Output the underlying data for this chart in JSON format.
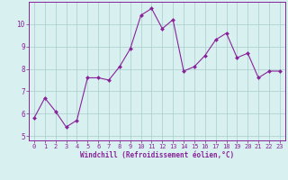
{
  "x": [
    0,
    1,
    2,
    3,
    4,
    5,
    6,
    7,
    8,
    9,
    10,
    11,
    12,
    13,
    14,
    15,
    16,
    17,
    18,
    19,
    20,
    21,
    22,
    23
  ],
  "y": [
    5.8,
    6.7,
    6.1,
    5.4,
    5.7,
    7.6,
    7.6,
    7.5,
    8.1,
    8.9,
    10.4,
    10.7,
    9.8,
    10.2,
    7.9,
    8.1,
    8.6,
    9.3,
    9.6,
    8.5,
    8.7,
    7.6,
    7.9,
    7.9
  ],
  "line_color": "#882299",
  "marker": "D",
  "marker_size": 2.0,
  "bg_color": "#d8f0f0",
  "grid_color": "#aacccc",
  "xlabel": "Windchill (Refroidissement éolien,°C)",
  "xlim": [
    -0.5,
    23.5
  ],
  "ylim": [
    4.8,
    11.0
  ],
  "yticks": [
    5,
    6,
    7,
    8,
    9,
    10
  ],
  "xticks": [
    0,
    1,
    2,
    3,
    4,
    5,
    6,
    7,
    8,
    9,
    10,
    11,
    12,
    13,
    14,
    15,
    16,
    17,
    18,
    19,
    20,
    21,
    22,
    23
  ],
  "tick_color": "#882299",
  "label_color": "#882299",
  "spine_color": "#882299",
  "xlabel_fontsize": 5.5,
  "xtick_fontsize": 5.0,
  "ytick_fontsize": 5.5
}
